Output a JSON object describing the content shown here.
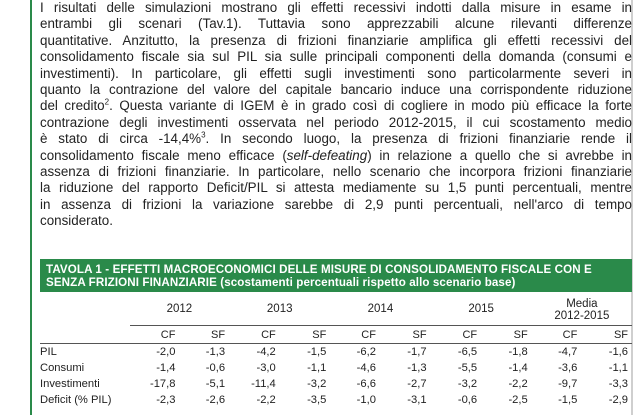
{
  "paragraph": {
    "lines": [
      "I risultati delle simulazioni mostrano gli effetti recessivi indotti dalla misure in esame in",
      "entrambi gli scenari (Tav.1). Tuttavia sono apprezzabili alcune rilevanti differenze",
      "quantitative. Anzitutto, la presenza di frizioni finanziarie amplifica gli effetti recessivi del",
      "consolidamento fiscale sia sul PIL sia sulle principali componenti della domanda (consumi e",
      "investimenti). In particolare, gli effetti sugli investimenti sono particolarmente severi in",
      "quanto la contrazione del valore del capitale bancario induce una corrispondente riduzione",
      "del credito",
      "contrazione degli investimenti osservata nel periodo 2012-2015, il cui scostamento medio",
      "è stato di circa -14,4%",
      "consolidamento fiscale meno efficace (",
      "assenza di frizioni finanziarie. In particolare, nello scenario che incorpora frizioni finanziarie",
      "la riduzione del rapporto Deficit/PIL si attesta mediamente su 1,5 punti percentuali, mentre",
      "in assenza di frizioni la variazione sarebbe di 2,9 punti percentuali, nell'arco di tempo",
      "considerato."
    ],
    "line7_rest": ". Questa variante di IGEM è in grado così di cogliere in modo più efficace la forte",
    "line9_rest": ". In secondo luogo, la presenza di frizioni finanziarie rende il",
    "line10_italic": "self-defeating",
    "line10_rest": ") in relazione a quello che si avrebbe in",
    "footnote_2": "2",
    "footnote_3": "3"
  },
  "table": {
    "title": "TAVOLA 1 - EFFETTI MACROECONOMICI DELLE MISURE DI CONSOLIDAMENTO FISCALE CON E",
    "title_line2": "SENZA FRIZIONI FINANZIARIE",
    "subtitle": "(scostamenti percentuali rispetto allo scenario base)",
    "years": [
      "2012",
      "2013",
      "2014",
      "2015"
    ],
    "media_label": "Media",
    "media_range": "2012-2015",
    "col_labels": [
      "CF",
      "SF"
    ],
    "rows": [
      {
        "label": "PIL",
        "values": [
          "-2,0",
          "-1,3",
          "-4,2",
          "-1,5",
          "-6,2",
          "-1,7",
          "-6,5",
          "-1,8",
          "-4,7",
          "-1,6"
        ]
      },
      {
        "label": "Consumi",
        "values": [
          "-1,4",
          "-0,6",
          "-3,0",
          "-1,1",
          "-4,6",
          "-1,3",
          "-5,5",
          "-1,4",
          "-3,6",
          "-1,1"
        ]
      },
      {
        "label": "Investimenti",
        "values": [
          "-17,8",
          "-5,1",
          "-11,4",
          "-3,2",
          "-6,6",
          "-2,7",
          "-3,2",
          "-2,2",
          "-9,7",
          "-3,3"
        ]
      },
      {
        "label": "Deficit (% PIL)",
        "values": [
          "-2,3",
          "-2,6",
          "-2,2",
          "-3,5",
          "-1,0",
          "-3,1",
          "-0,6",
          "-2,5",
          "-1,5",
          "-2,9"
        ]
      }
    ]
  }
}
